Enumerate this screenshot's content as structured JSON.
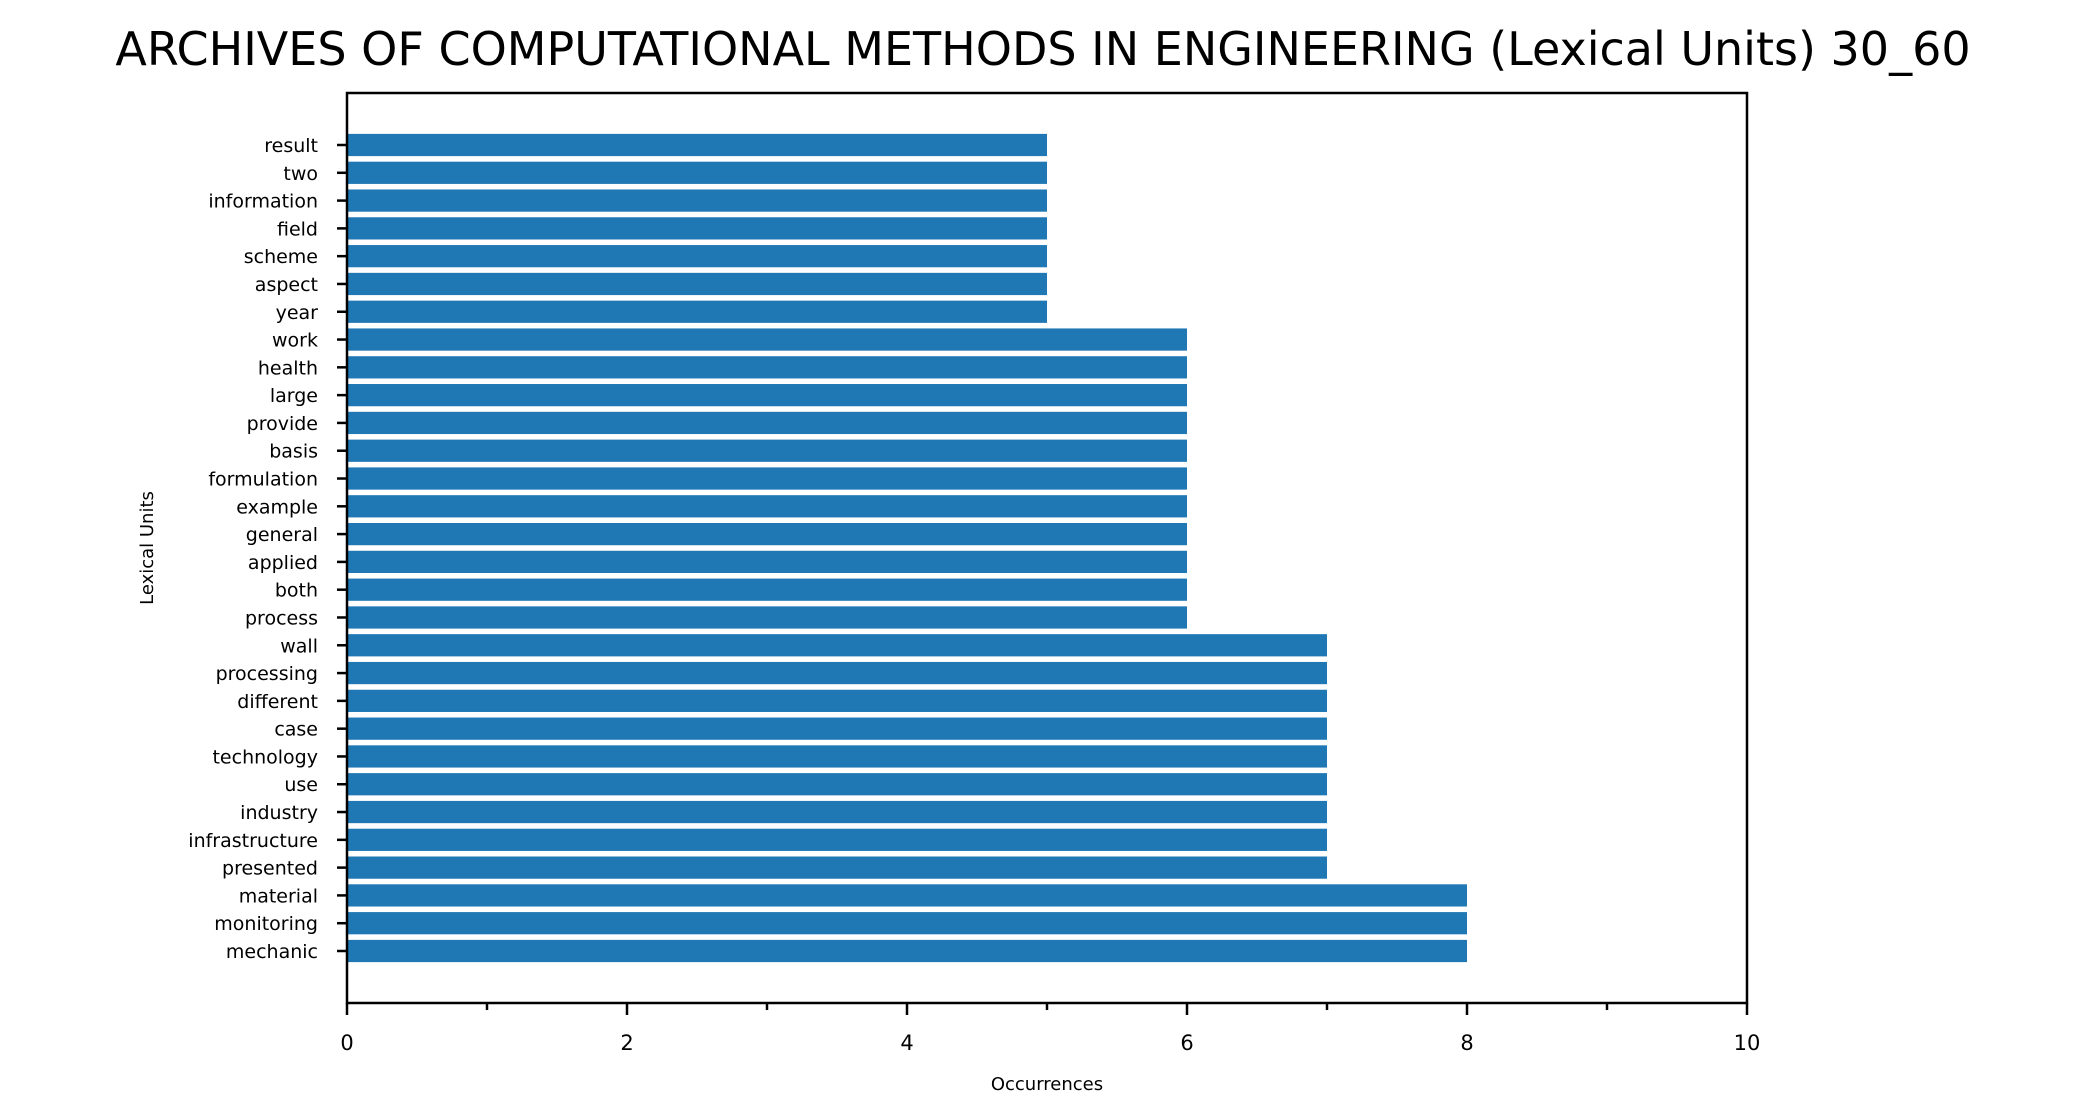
{
  "chart_data": {
    "type": "bar",
    "orientation": "horizontal",
    "title": "ARCHIVES OF COMPUTATIONAL METHODS IN ENGINEERING (Lexical Units) 30_60",
    "xlabel": "Occurrences",
    "ylabel": "Lexical Units",
    "xlim": [
      0,
      10
    ],
    "xticks": [
      0,
      2,
      4,
      6,
      8,
      10
    ],
    "grid": false,
    "bar_color": "#1f77b4",
    "categories": [
      "mechanic",
      "monitoring",
      "material",
      "presented",
      "infrastructure",
      "industry",
      "use",
      "technology",
      "case",
      "different",
      "processing",
      "wall",
      "process",
      "both",
      "applied",
      "general",
      "example",
      "formulation",
      "basis",
      "provide",
      "large",
      "health",
      "work",
      "year",
      "aspect",
      "scheme",
      "field",
      "information",
      "two",
      "result"
    ],
    "values": [
      8,
      8,
      8,
      7,
      7,
      7,
      7,
      7,
      7,
      7,
      7,
      7,
      6,
      6,
      6,
      6,
      6,
      6,
      6,
      6,
      6,
      6,
      6,
      5,
      5,
      5,
      5,
      5,
      5,
      5
    ]
  }
}
